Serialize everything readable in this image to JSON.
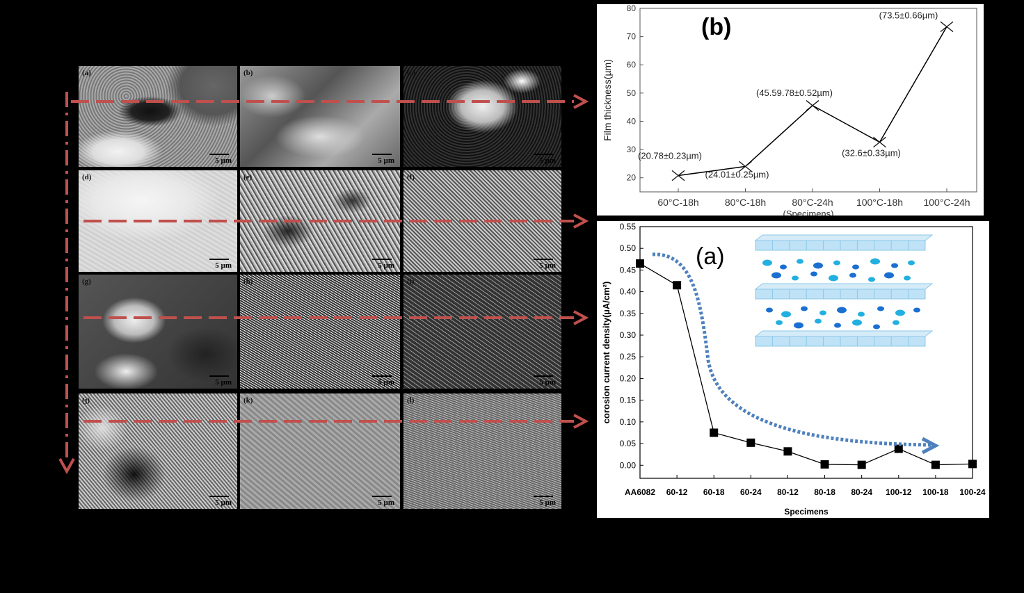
{
  "sem_panels": [
    {
      "label": "(a)",
      "scale": "5 µm",
      "tex": "tex-a"
    },
    {
      "label": "(b)",
      "scale": "5 µm",
      "tex": "tex-b"
    },
    {
      "label": "(c)",
      "scale": "5 µm",
      "tex": "tex-c"
    },
    {
      "label": "(d)",
      "scale": "5 µm",
      "tex": "tex-d"
    },
    {
      "label": "(e)",
      "scale": "5 µm",
      "tex": "tex-e"
    },
    {
      "label": "(f)",
      "scale": "5 µm",
      "tex": "tex-f"
    },
    {
      "label": "(g)",
      "scale": "5 µm",
      "tex": "tex-g"
    },
    {
      "label": "(h)",
      "scale": "5 µm",
      "tex": "tex-h"
    },
    {
      "label": "(i)",
      "scale": "5 µm",
      "tex": "tex-i"
    },
    {
      "label": "(j)",
      "scale": "5 µm",
      "tex": "tex-j"
    },
    {
      "label": "(k)",
      "scale": "5 µm",
      "tex": "tex-k"
    },
    {
      "label": "(l)",
      "scale": "5 µm",
      "tex": "tex-l"
    }
  ],
  "colors": {
    "arrow": "#c0504d",
    "trend_arrow": "#4f81bd",
    "marker": "#000000"
  },
  "chart_data": [
    {
      "type": "line",
      "panel_label": "(b)",
      "categories": [
        "60°C-18h",
        "80°C-18h",
        "80°C-24h",
        "100°C-18h",
        "100°C-24h"
      ],
      "values": [
        20.78,
        24.01,
        45.59,
        32.6,
        73.5
      ],
      "point_labels": [
        "(20.78±0.23µm)",
        "(24.01±0.25µm)",
        "(45.59.78±0.52µm)",
        "(32.6±0.33µm)",
        "(73.5±0.66µm)"
      ],
      "marker": "x",
      "ylabel": "Film thickness(µm)",
      "xlabel": "(Specimens)",
      "ylim": [
        15,
        80
      ],
      "yticks": [
        20,
        30,
        40,
        50,
        60,
        70,
        80
      ]
    },
    {
      "type": "line",
      "panel_label": "(a)",
      "categories": [
        "AA6082",
        "60-12",
        "60-18",
        "60-24",
        "80-12",
        "80-18",
        "80-24",
        "100-12",
        "100-18",
        "100-24"
      ],
      "values": [
        0.465,
        0.415,
        0.075,
        0.052,
        0.032,
        0.002,
        0.001,
        0.038,
        0.001,
        0.003
      ],
      "marker": "square",
      "ylabel": "corosion current density(µA/cm²)",
      "xlabel": "Specimens",
      "ylim": [
        -0.03,
        0.55
      ],
      "yticks": [
        0.0,
        0.05,
        0.1,
        0.15,
        0.2,
        0.25,
        0.3,
        0.35,
        0.4,
        0.45,
        0.5,
        0.55
      ]
    }
  ]
}
